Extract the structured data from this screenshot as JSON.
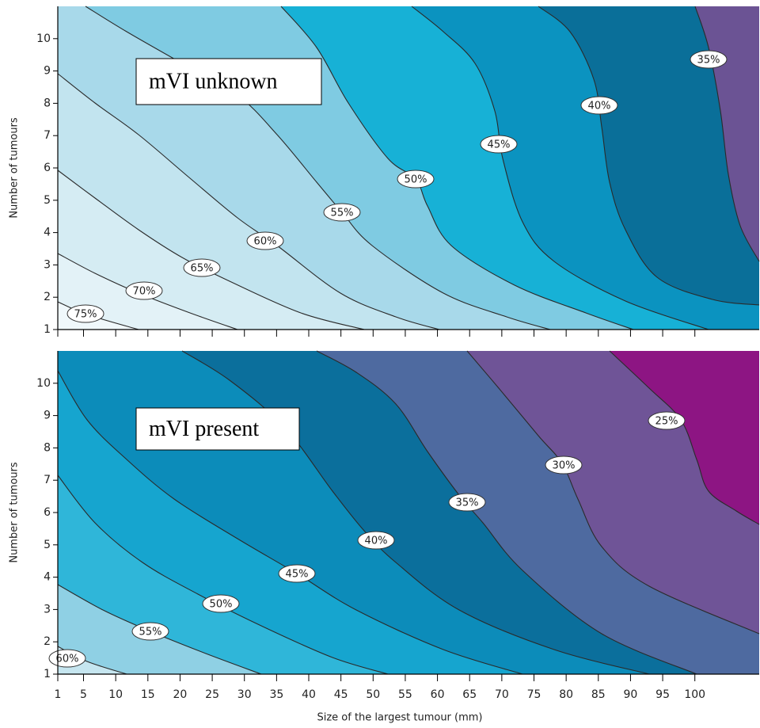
{
  "chart_data": [
    {
      "type": "contour",
      "title": "mVI unknown",
      "y_label": "Number of tumours",
      "xlim": [
        1,
        110
      ],
      "ylim": [
        1,
        11
      ],
      "xticks": [
        1,
        5,
        10,
        15,
        20,
        25,
        30,
        35,
        40,
        45,
        50,
        55,
        60,
        65,
        70,
        75,
        80,
        85,
        90,
        95,
        100
      ],
      "yticks": [
        1,
        2,
        3,
        4,
        5,
        6,
        7,
        8,
        9,
        10
      ],
      "levels": [
        75,
        70,
        65,
        60,
        55,
        50,
        45,
        40,
        35
      ],
      "value_labels": [
        "75%",
        "70%",
        "65%",
        "60%",
        "55%",
        "50%",
        "45%",
        "40%",
        "35%"
      ],
      "band_colors": [
        "#f0f8fb",
        "#e3f2f7",
        "#d5ecf3",
        "#c2e4ef",
        "#a8d9ea",
        "#7fcbe2",
        "#17b1d6",
        "#0b93c0",
        "#0a6f99",
        "#6b5394"
      ]
    },
    {
      "type": "contour",
      "title": "mVI present",
      "y_label": "Number of tumours",
      "x_label": "Size of the largest tumour (mm)",
      "xlim": [
        1,
        110
      ],
      "ylim": [
        1,
        11
      ],
      "xticks": [
        1,
        5,
        10,
        15,
        20,
        25,
        30,
        35,
        40,
        45,
        50,
        55,
        60,
        65,
        70,
        75,
        80,
        85,
        90,
        95,
        100
      ],
      "yticks": [
        1,
        2,
        3,
        4,
        5,
        6,
        7,
        8,
        9,
        10
      ],
      "levels": [
        60,
        55,
        50,
        45,
        40,
        35,
        30,
        25
      ],
      "value_labels": [
        "60%",
        "55%",
        "50%",
        "45%",
        "40%",
        "35%",
        "30%",
        "25%"
      ],
      "band_colors": [
        "#c6e6f0",
        "#8fd0e4",
        "#2fb6d9",
        "#16a5cf",
        "#0c8cba",
        "#0b6f9c",
        "#4e6aa0",
        "#6f5497",
        "#8d1583"
      ]
    }
  ]
}
